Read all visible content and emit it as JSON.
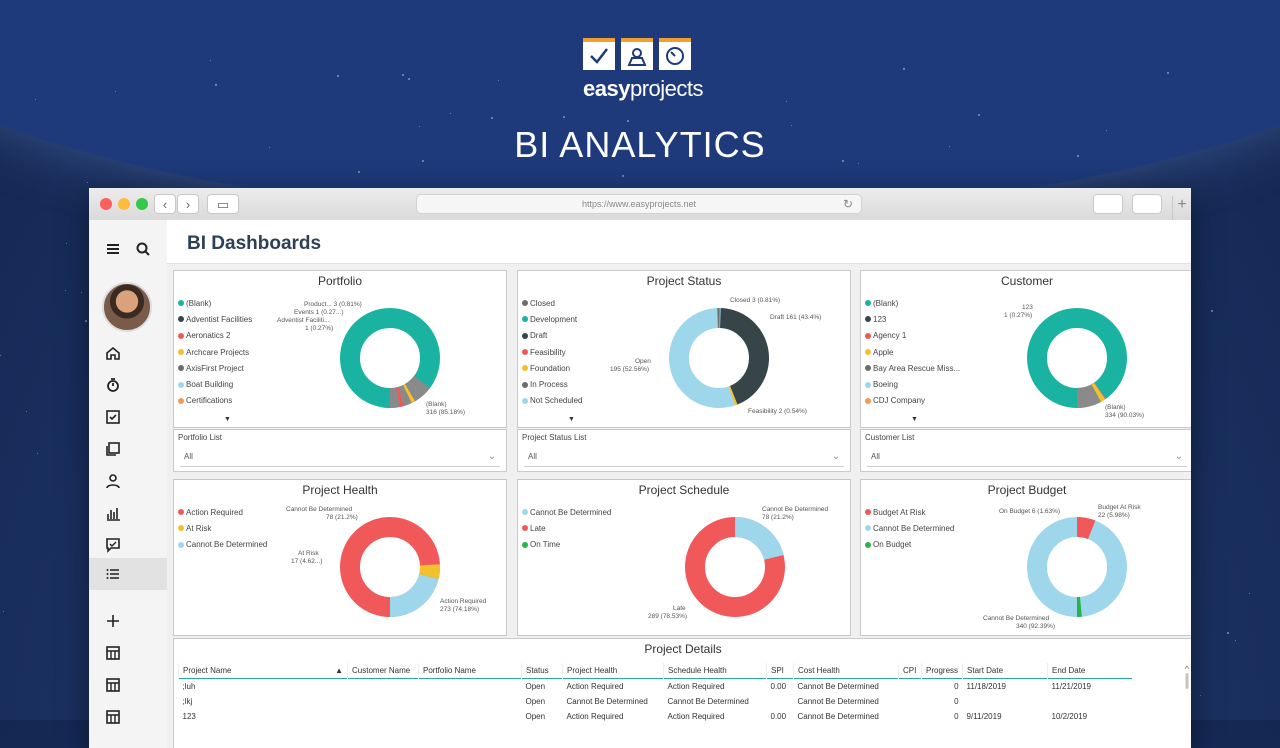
{
  "brand": {
    "name_bold": "easy",
    "name_rest": "projects",
    "hero_title": "BI ANALYTICS"
  },
  "browser": {
    "url": "https://www.easyprojects.net",
    "back": "‹",
    "forward": "›",
    "new_tab": "+"
  },
  "sidebar": {
    "icons": [
      "menu-icon",
      "search-icon",
      "home-icon",
      "timer-icon",
      "tasks-icon",
      "projects-icon",
      "user-icon",
      "reports-icon",
      "chat-icon",
      "list-icon",
      "add-icon",
      "table-icon",
      "table-icon",
      "table-icon"
    ]
  },
  "page": {
    "title": "BI Dashboards"
  },
  "cards": {
    "portfolio": {
      "title": "Portfolio",
      "legend": [
        "(Blank)",
        "Adventist Facilities",
        "Aeronatics 2",
        "Archcare Projects",
        "AxisFirst Project",
        "Boat Building",
        "Certifications"
      ],
      "labels": {
        "a": "Product... 3 (0.81%)",
        "b": "Events 1 (0.27...)",
        "c": "Adventist Faciliti...",
        "d": "1 (0.27%)",
        "e": "(Blank)",
        "f": "316 (85.18%)"
      },
      "filter_label": "Portfolio List",
      "filter_value": "All"
    },
    "status": {
      "title": "Project Status",
      "legend": [
        "Closed",
        "Development",
        "Draft",
        "Feasibility",
        "Foundation",
        "In Process",
        "Not Scheduled"
      ],
      "labels": {
        "a": "Closed 3 (0.81%)",
        "b": "Draft 161 (43.4%)",
        "c": "Open",
        "d": "195 (52.56%)",
        "e": "Feasibility 2 (0.54%)"
      },
      "filter_label": "Project Status List",
      "filter_value": "All"
    },
    "customer": {
      "title": "Customer",
      "legend": [
        "(Blank)",
        "123",
        "Agency 1",
        "Apple",
        "Bay Area Rescue Miss...",
        "Boeing",
        "CDJ Company"
      ],
      "labels": {
        "a": "123",
        "b": "1 (0.27%)",
        "c": "(Blank)",
        "d": "334 (90.03%)"
      },
      "filter_label": "Customer List",
      "filter_value": "All"
    },
    "health": {
      "title": "Project Health",
      "legend": [
        "Action Required",
        "At Risk",
        "Cannot Be Determined"
      ],
      "labels": {
        "a": "Cannot Be Determined",
        "b": "78 (21.2%)",
        "c": "At Risk",
        "d": "17 (4.62...)",
        "e": "Action Required",
        "f": "273 (74.18%)"
      }
    },
    "schedule": {
      "title": "Project Schedule",
      "legend": [
        "Cannot Be Determined",
        "Late",
        "On Time"
      ],
      "labels": {
        "a": "Cannot Be Determined",
        "b": "78 (21.2%)",
        "c": "Late",
        "d": "289 (78.53%)"
      }
    },
    "budget": {
      "title": "Project Budget",
      "legend": [
        "Budget At Risk",
        "Cannot Be Determined",
        "On Budget"
      ],
      "labels": {
        "a": "On Budget 6 (1.63%)",
        "b": "Budget At Risk",
        "c": "22 (5.98%)",
        "d": "Cannot Be Determined",
        "e": "340 (92.39%)"
      }
    }
  },
  "details": {
    "title": "Project Details",
    "columns": [
      "Project Name",
      "Customer Name",
      "Portfolio Name",
      "Status",
      "Project Health",
      "Schedule Health",
      "SPI",
      "Cost Health",
      "CPI",
      "Progress",
      "Start Date",
      "End Date"
    ],
    "rows": [
      [
        ";luh",
        "",
        "",
        "Open",
        "Action Required",
        "Action Required",
        "0.00",
        "Cannot Be Determined",
        "",
        "0",
        "11/18/2019",
        "11/21/2019"
      ],
      [
        ";lkj",
        "",
        "",
        "Open",
        "Cannot Be Determined",
        "Cannot Be Determined",
        "",
        "Cannot Be Determined",
        "",
        "0",
        "",
        ""
      ],
      [
        "123",
        "",
        "",
        "Open",
        "Action Required",
        "Action Required",
        "0.00",
        "Cannot Be Determined",
        "",
        "0",
        "9/11/2019",
        "10/2/2019"
      ]
    ]
  },
  "colors": {
    "teal": "#1ab3a1",
    "dark": "#374549",
    "red": "#f0585a",
    "yellow": "#f2c12e",
    "lightblue": "#9ed7ec",
    "green": "#2bb24c",
    "gray": "#6d6d6d",
    "orange": "#f49a55"
  }
}
